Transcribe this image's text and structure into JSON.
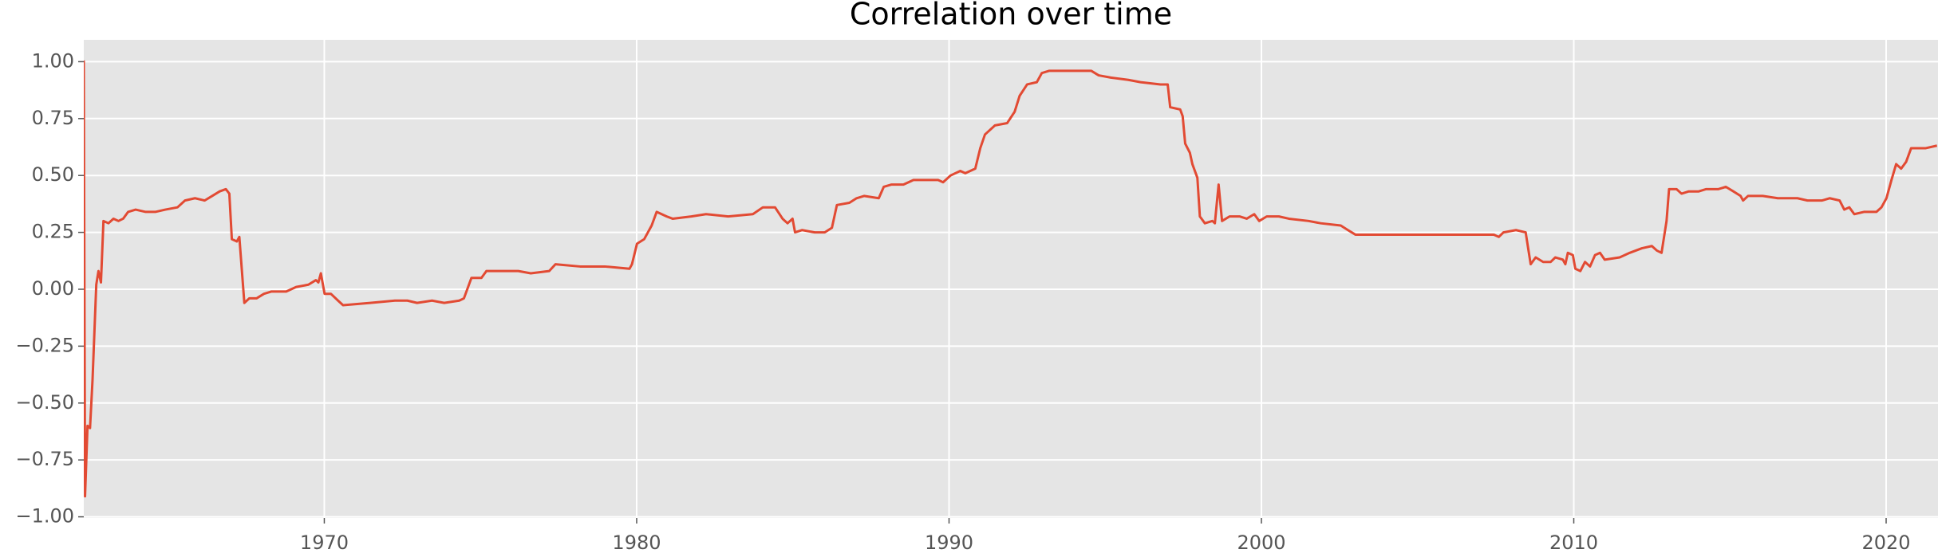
{
  "chart_data": {
    "type": "line",
    "title": "Correlation over time",
    "color": "#e24a33",
    "grid": true,
    "xlim": [
      1962.3,
      2021.66
    ],
    "ylim": [
      -1.005,
      1.096
    ],
    "xticks": [
      1970,
      1980,
      1990,
      2000,
      2010,
      2020
    ],
    "yticks": [
      {
        "value": -1,
        "label": "−1.00"
      },
      {
        "value": -0.75,
        "label": "−0.75"
      },
      {
        "value": -0.5,
        "label": "−0.50"
      },
      {
        "value": -0.25,
        "label": "−0.25"
      },
      {
        "value": 0,
        "label": "0.00"
      },
      {
        "value": 0.25,
        "label": "0.25"
      },
      {
        "value": 0.5,
        "label": "0.50"
      },
      {
        "value": 0.75,
        "label": "0.75"
      },
      {
        "value": 1,
        "label": "1.00"
      }
    ],
    "x": [
      1962.3,
      1962.34,
      1962.42,
      1962.5,
      1962.58,
      1962.7,
      1962.77,
      1962.85,
      1962.93,
      1963.09,
      1963.25,
      1963.41,
      1963.56,
      1963.72,
      1963.96,
      1964.28,
      1964.59,
      1964.91,
      1965.3,
      1965.54,
      1965.86,
      1966.17,
      1966.41,
      1966.65,
      1966.85,
      1966.96,
      1967.04,
      1967.2,
      1967.28,
      1967.44,
      1967.6,
      1967.83,
      1968.07,
      1968.31,
      1968.78,
      1969.1,
      1969.49,
      1969.73,
      1969.81,
      1969.89,
      1970.01,
      1970.21,
      1970.44,
      1970.6,
      1971.47,
      1972.26,
      1972.66,
      1972.97,
      1973.45,
      1973.84,
      1974.32,
      1974.47,
      1974.71,
      1975.03,
      1975.19,
      1975.82,
      1976.21,
      1976.61,
      1977.2,
      1977.4,
      1978.19,
      1978.98,
      1979.77,
      1979.85,
      1980.01,
      1980.24,
      1980.48,
      1980.64,
      1980.96,
      1981.15,
      1981.75,
      1982.22,
      1982.93,
      1983.72,
      1984.04,
      1984.43,
      1984.67,
      1984.83,
      1984.99,
      1985.07,
      1985.3,
      1985.7,
      1986.02,
      1986.25,
      1986.41,
      1986.81,
      1987.04,
      1987.28,
      1987.75,
      1987.91,
      1988.15,
      1988.54,
      1988.86,
      1989.65,
      1989.81,
      1990.05,
      1990.36,
      1990.52,
      1990.84,
      1991.0,
      1991.15,
      1991.47,
      1991.86,
      1992.1,
      1992.26,
      1992.5,
      1992.81,
      1992.97,
      1993.21,
      1993.6,
      1994.0,
      1994.55,
      1994.79,
      1995.18,
      1995.74,
      1996.13,
      1996.77,
      1997.0,
      1997.08,
      1997.4,
      1997.48,
      1997.56,
      1997.71,
      1997.79,
      1997.95,
      1998.03,
      1998.19,
      1998.43,
      1998.51,
      1998.63,
      1998.74,
      1998.98,
      1999.3,
      1999.53,
      1999.77,
      1999.93,
      2000.17,
      2000.56,
      2000.88,
      2001.51,
      2001.9,
      2002.54,
      2002.77,
      2003.01,
      2003.49,
      2005.07,
      2007.04,
      2007.44,
      2007.6,
      2007.75,
      2008.15,
      2008.46,
      2008.62,
      2008.78,
      2009.02,
      2009.26,
      2009.41,
      2009.65,
      2009.73,
      2009.81,
      2009.97,
      2010.05,
      2010.21,
      2010.36,
      2010.52,
      2010.68,
      2010.84,
      2010.99,
      2011.47,
      2011.79,
      2012.18,
      2012.5,
      2012.66,
      2012.81,
      2012.97,
      2013.05,
      2013.29,
      2013.45,
      2013.68,
      2014.0,
      2014.24,
      2014.63,
      2014.87,
      2015.11,
      2015.34,
      2015.42,
      2015.58,
      2016.05,
      2016.53,
      2017.16,
      2017.48,
      2017.95,
      2018.19,
      2018.51,
      2018.66,
      2018.82,
      2018.98,
      2019.29,
      2019.69,
      2019.85,
      2020.01,
      2020.17,
      2020.32,
      2020.48,
      2020.64,
      2020.8,
      2021.27,
      2021.59
    ],
    "values": [
      1.0,
      -0.91,
      -0.6,
      -0.61,
      -0.4,
      0.02,
      0.08,
      0.03,
      0.3,
      0.29,
      0.31,
      0.3,
      0.31,
      0.34,
      0.35,
      0.34,
      0.34,
      0.35,
      0.36,
      0.39,
      0.4,
      0.39,
      0.41,
      0.43,
      0.44,
      0.42,
      0.22,
      0.21,
      0.23,
      -0.06,
      -0.04,
      -0.04,
      -0.02,
      -0.01,
      -0.01,
      0.01,
      0.02,
      0.04,
      0.03,
      0.07,
      -0.02,
      -0.02,
      -0.05,
      -0.07,
      -0.06,
      -0.05,
      -0.05,
      -0.06,
      -0.05,
      -0.06,
      -0.05,
      -0.04,
      0.05,
      0.05,
      0.08,
      0.08,
      0.08,
      0.07,
      0.08,
      0.11,
      0.1,
      0.1,
      0.09,
      0.11,
      0.2,
      0.22,
      0.28,
      0.34,
      0.32,
      0.31,
      0.32,
      0.33,
      0.32,
      0.33,
      0.36,
      0.36,
      0.31,
      0.29,
      0.31,
      0.25,
      0.26,
      0.25,
      0.25,
      0.27,
      0.37,
      0.38,
      0.4,
      0.41,
      0.4,
      0.45,
      0.46,
      0.46,
      0.48,
      0.48,
      0.47,
      0.5,
      0.52,
      0.51,
      0.53,
      0.62,
      0.68,
      0.72,
      0.73,
      0.78,
      0.85,
      0.9,
      0.91,
      0.95,
      0.96,
      0.96,
      0.96,
      0.96,
      0.94,
      0.93,
      0.92,
      0.91,
      0.9,
      0.9,
      0.8,
      0.79,
      0.76,
      0.64,
      0.6,
      0.55,
      0.49,
      0.32,
      0.29,
      0.3,
      0.29,
      0.46,
      0.3,
      0.32,
      0.32,
      0.31,
      0.33,
      0.3,
      0.32,
      0.32,
      0.31,
      0.3,
      0.29,
      0.28,
      0.26,
      0.24,
      0.24,
      0.24,
      0.24,
      0.24,
      0.23,
      0.25,
      0.26,
      0.25,
      0.11,
      0.14,
      0.12,
      0.12,
      0.14,
      0.13,
      0.11,
      0.16,
      0.15,
      0.09,
      0.08,
      0.12,
      0.1,
      0.15,
      0.16,
      0.13,
      0.14,
      0.16,
      0.18,
      0.19,
      0.17,
      0.16,
      0.3,
      0.44,
      0.44,
      0.42,
      0.43,
      0.43,
      0.44,
      0.44,
      0.45,
      0.43,
      0.41,
      0.39,
      0.41,
      0.41,
      0.4,
      0.4,
      0.39,
      0.39,
      0.4,
      0.39,
      0.35,
      0.36,
      0.33,
      0.34,
      0.34,
      0.36,
      0.4,
      0.48,
      0.55,
      0.53,
      0.56,
      0.62,
      0.62,
      0.63
    ]
  }
}
